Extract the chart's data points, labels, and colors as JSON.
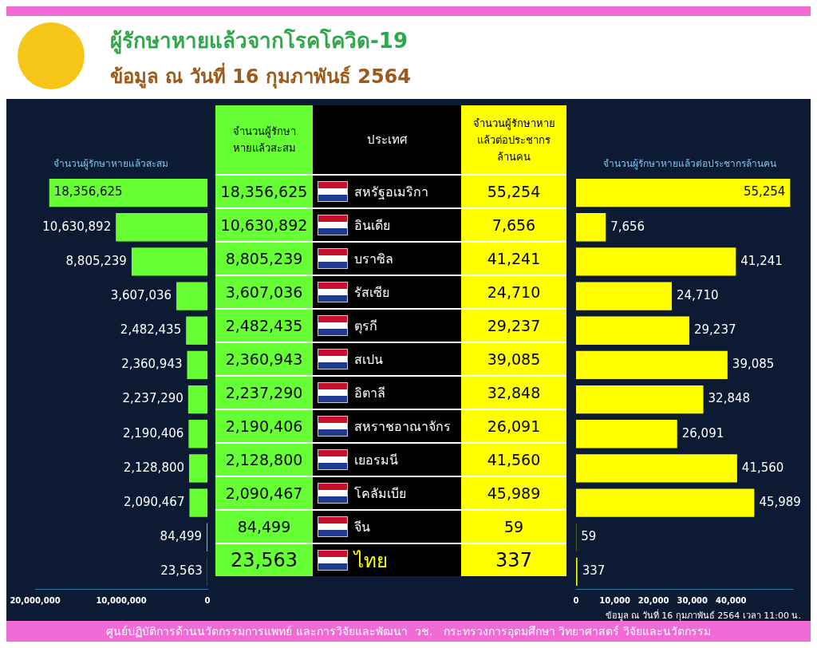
{
  "chart_data": [
    {
      "type": "bar",
      "orientation": "horizontal",
      "title": "ผู้รักษาหายแล้วจากโรคโควิด-19",
      "subtitle": "ข้อมูล ณ วันที่ 16 กุมภาพันธ์ 2564",
      "xlabel": "จำนวนผู้รักษาหายแล้วสะสม",
      "ylabel": "ประเทศ",
      "categories": [
        "สหรัฐอเมริกา",
        "อินเดีย",
        "บราซิล",
        "รัสเซีย",
        "ตุรกี",
        "สเปน",
        "อิตาลี",
        "สหราชอาณาจักร",
        "เยอรมนี",
        "โคลัมเบีย",
        "จีน",
        "ไทย"
      ],
      "values": [
        18356625,
        10630892,
        8805239,
        3607036,
        2482435,
        2360943,
        2237290,
        2190406,
        2128800,
        2090467,
        84499,
        23563
      ],
      "value_labels": [
        "18,356,625",
        "10,630,892",
        "8,805,239",
        "3,607,036",
        "2,482,435",
        "2,360,943",
        "2,237,290",
        "2,190,406",
        "2,128,800",
        "2,090,467",
        "84,499",
        "23,563"
      ],
      "color": "#66ff33",
      "xlim": [
        20000000,
        0
      ],
      "xticks": [
        {
          "value": 20000000,
          "label": "20,000,000"
        },
        {
          "value": 10000000,
          "label": "10,000,000"
        },
        0
      ],
      "tick_labels": "x",
      "grid": false,
      "legend": false,
      "annotations": [
        "ข้อมูล ณ วันที่ 16 กุมภาพันธ์ 2564 เวลา 11:00 น.",
        "ศูนย์ปฏิบัติการด้านนวัตกรรมการแพทย์ และการวิจัยและพัฒนา  วช.   กระทรวงการอุดมศึกษา วิทยาศาสตร์ วิจัยและนวัตกรรม"
      ]
    },
    {
      "type": "bar",
      "orientation": "horizontal",
      "xlabel": "จำนวนผู้รักษาหายแล้วต่อประชากรล้านคน",
      "categories": [
        null,
        null,
        null,
        null,
        null,
        null,
        null,
        null,
        null,
        null,
        null,
        null
      ],
      "values": [
        55254,
        7656,
        41241,
        24710,
        29237,
        39085,
        32848,
        26091,
        41560,
        45989,
        59,
        337
      ],
      "value_labels": [
        "55,254",
        "7,656",
        "41,241",
        "24,710",
        "29,237",
        "39,085",
        "32,848",
        "26,091",
        "41,560",
        "45,989",
        "59",
        "337"
      ],
      "color": "#ffff00",
      "xlim": [
        0,
        56000
      ],
      "xticks": [
        0,
        {
          "value": 10000,
          "label": "10,000"
        },
        {
          "value": 20000,
          "label": "20,000"
        },
        {
          "value": 30000,
          "label": "30,000"
        },
        {
          "value": 40000,
          "label": "40,000"
        }
      ],
      "tick_labels": "x",
      "grid": false,
      "legend": false
    }
  ]
}
